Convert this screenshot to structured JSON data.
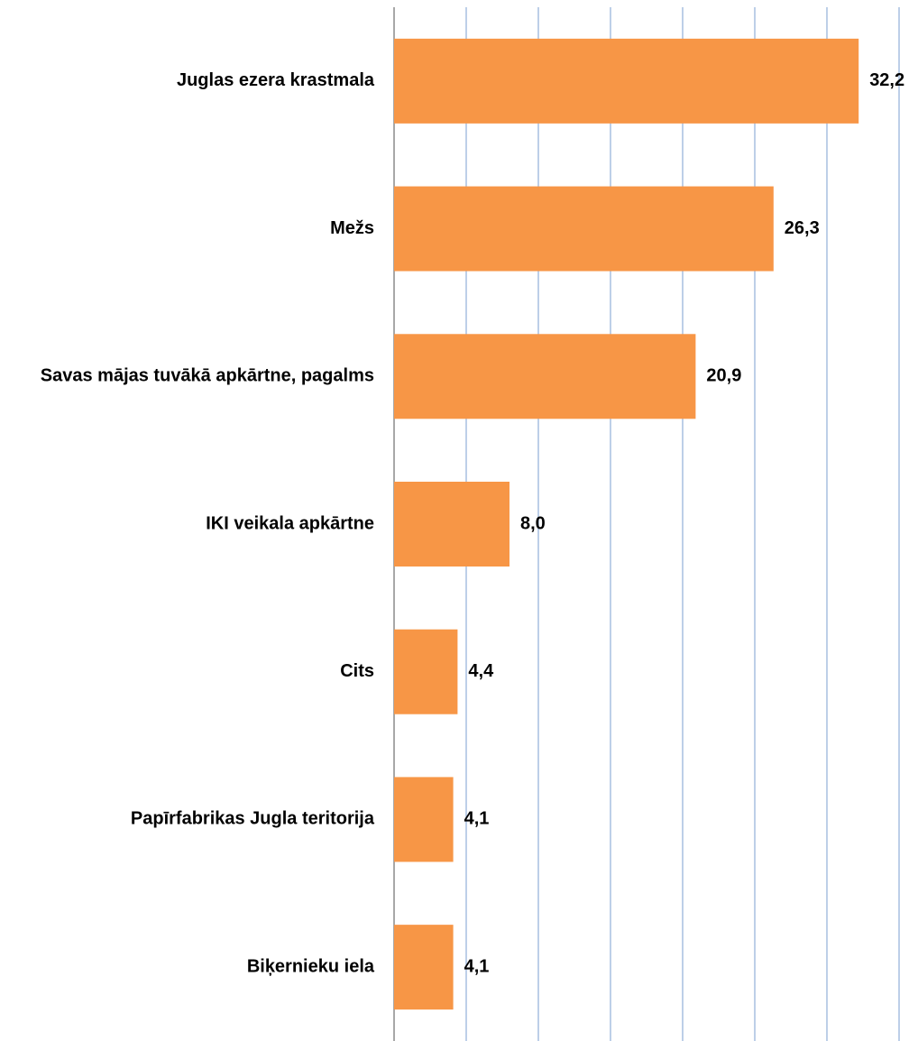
{
  "chart_data": {
    "type": "barh",
    "categories": [
      "Juglas ezera krastmala",
      "Mežs",
      "Savas mājas tuvākā apkārtne, pagalms",
      "IKI veikala apkārtne",
      "Cits",
      "Papīrfabrikas Jugla teritorija",
      "Biķernieku iela"
    ],
    "values": [
      32.2,
      26.3,
      20.9,
      8.0,
      4.4,
      4.1,
      4.1
    ],
    "value_labels": [
      "32,2",
      "26,3",
      "20,9",
      "8,0",
      "4,4",
      "4,1",
      "4,1"
    ],
    "color": "#f79646",
    "xlim": [
      0,
      35
    ],
    "xticks": [
      0,
      5,
      10,
      15,
      20,
      25,
      30,
      35
    ],
    "grid": true
  }
}
